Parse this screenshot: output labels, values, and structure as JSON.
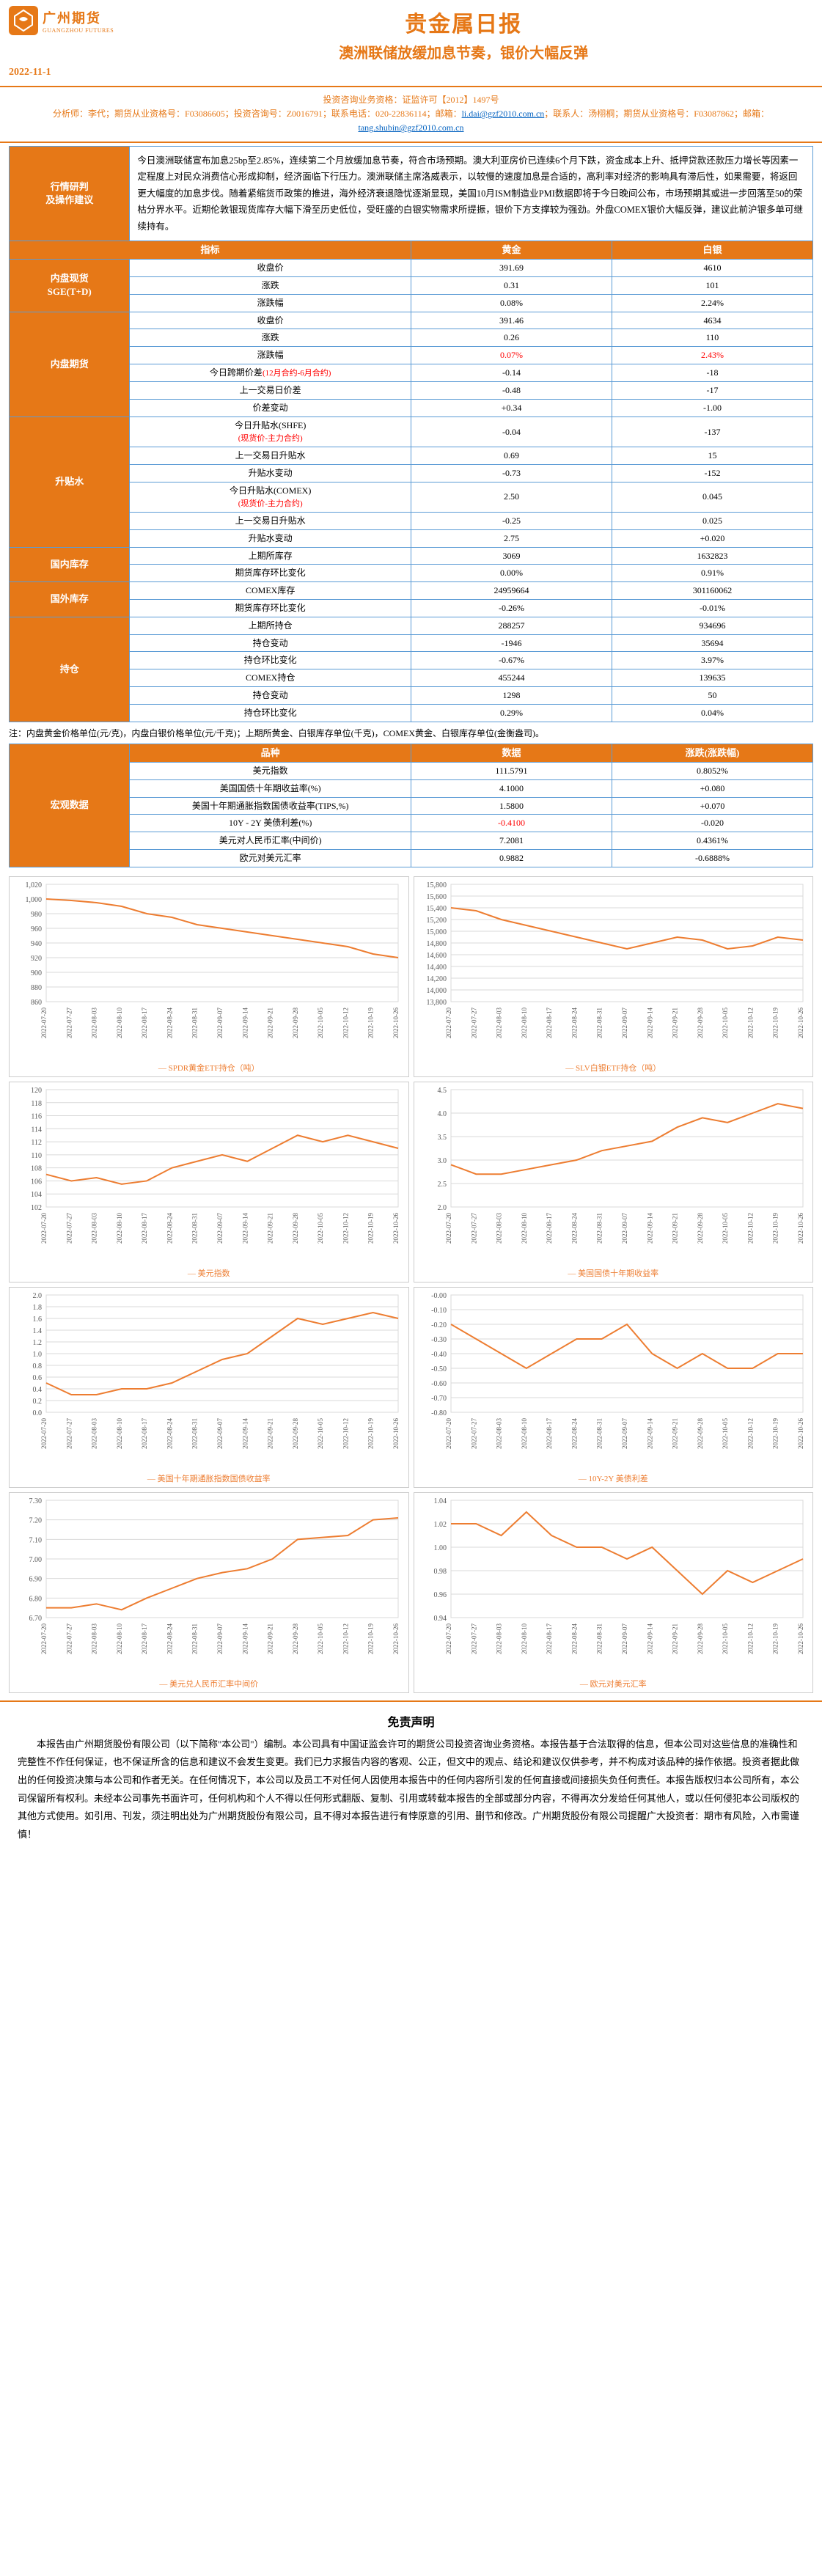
{
  "header": {
    "logo_ch": "广州期货",
    "logo_en": "GUANGZHOU FUTURES",
    "title": "贵金属日报",
    "subtitle": "澳洲联储放缓加息节奏，银价大幅反弹",
    "date": "2022-11-1",
    "license_line": "投资咨询业务资格：证监许可【2012】1497号",
    "analyst_line1": "分析师：李代；期货从业资格号：F03086605；投资咨询号：Z0016791；联系电话：020-22836114；邮箱：",
    "analyst_email1": "li.dai@gzf2010.com.cn",
    "analyst_line2": "；联系人：汤栩桐；期货从业资格号：F03087862；邮箱：",
    "analyst_email2": "tang.shubin@gzf2010.com.cn"
  },
  "analysis": {
    "section_label": "行情研判\n及操作建议",
    "text": "今日澳洲联储宣布加息25bp至2.85%，连续第二个月放缓加息节奏，符合市场预期。澳大利亚房价已连续6个月下跌，资金成本上升、抵押贷款还款压力增长等因素一定程度上对民众消费信心形成抑制，经济面临下行压力。澳洲联储主席洛威表示，以较慢的速度加息是合适的，高利率对经济的影响具有滞后性，如果需要，将返回更大幅度的加息步伐。随着紧缩货币政策的推进，海外经济衰退隐忧逐渐显现，美国10月ISM制造业PMI数据即将于今日晚间公布，市场预期其或进一步回落至50的荣枯分界水平。近期伦敦银现货库存大幅下滑至历史低位，受旺盛的白银实物需求所提振，银价下方支撑较为强劲。外盘COMEX银价大幅反弹，建议此前沪银多单可继续持有。"
  },
  "table_main": {
    "header": [
      "指标",
      "黄金",
      "白银"
    ],
    "groups": [
      {
        "label": "内盘现货\nSGE(T+D)",
        "rows": [
          {
            "k": "收盘价",
            "g": "391.69",
            "s": "4610"
          },
          {
            "k": "涨跌",
            "g": "0.31",
            "s": "101"
          },
          {
            "k": "涨跌幅",
            "g": "0.08%",
            "s": "2.24%"
          }
        ]
      },
      {
        "label": "内盘期货",
        "rows": [
          {
            "k": "收盘价",
            "g": "391.46",
            "s": "4634"
          },
          {
            "k": "涨跌",
            "g": "0.26",
            "s": "110"
          },
          {
            "k": "涨跌幅",
            "g": "0.07%",
            "s": "2.43%",
            "red": true
          },
          {
            "k": "今日跨期价差(12月合约-6月合约)",
            "k_red_part": "(12月合约-6月合约)",
            "g": "-0.14",
            "s": "-18"
          },
          {
            "k": "上一交易日价差",
            "g": "-0.48",
            "s": "-17"
          },
          {
            "k": "价差变动",
            "g": "+0.34",
            "s": "-1.00"
          }
        ]
      },
      {
        "label": "升贴水",
        "rows": [
          {
            "k": "今日升贴水(SHFE)\n(现货价-主力合约)",
            "k_red_line2": "(现货价-主力合约)",
            "g": "-0.04",
            "s": "-137"
          },
          {
            "k": "上一交易日升贴水",
            "g": "0.69",
            "s": "15"
          },
          {
            "k": "升贴水变动",
            "g": "-0.73",
            "s": "-152"
          },
          {
            "k": "今日升贴水(COMEX)\n(现货价-主力合约)",
            "k_red_line2": "(现货价-主力合约)",
            "g": "2.50",
            "s": "0.045"
          },
          {
            "k": "上一交易日升贴水",
            "g": "-0.25",
            "s": "0.025"
          },
          {
            "k": "升贴水变动",
            "g": "2.75",
            "s": "+0.020"
          }
        ]
      },
      {
        "label": "国内库存",
        "rows": [
          {
            "k": "上期所库存",
            "g": "3069",
            "s": "1632823"
          },
          {
            "k": "期货库存环比变化",
            "g": "0.00%",
            "s": "0.91%"
          }
        ]
      },
      {
        "label": "国外库存",
        "rows": [
          {
            "k": "COMEX库存",
            "g": "24959664",
            "s": "301160062"
          },
          {
            "k": "期货库存环比变化",
            "g": "-0.26%",
            "s": "-0.01%"
          }
        ]
      },
      {
        "label": "持仓",
        "rows": [
          {
            "k": "上期所持仓",
            "g": "288257",
            "s": "934696"
          },
          {
            "k": "持仓变动",
            "g": "-1946",
            "s": "35694"
          },
          {
            "k": "持仓环比变化",
            "g": "-0.67%",
            "s": "3.97%"
          },
          {
            "k": "COMEX持仓",
            "g": "455244",
            "s": "139635"
          },
          {
            "k": "持仓变动",
            "g": "1298",
            "s": "50"
          },
          {
            "k": "持仓环比变化",
            "g": "0.29%",
            "s": "0.04%"
          }
        ]
      }
    ]
  },
  "note_text": "注：内盘黄金价格单位(元/克)，内盘白银价格单位(元/千克)；上期所黄金、白银库存单位(千克)，COMEX黄金、白银库存单位(金衡盎司)。",
  "macro": {
    "label": "宏观数据",
    "header": [
      "品种",
      "数据",
      "涨跌(涨跌幅)"
    ],
    "rows": [
      {
        "k": "美元指数",
        "v": "111.5791",
        "c": "0.8052%"
      },
      {
        "k": "美国国债十年期收益率(%)",
        "v": "4.1000",
        "c": "+0.080"
      },
      {
        "k": "美国十年期通胀指数国债收益率(TIPS,%)",
        "v": "1.5800",
        "c": "+0.070"
      },
      {
        "k": "10Y - 2Y 美债利差(%)",
        "v": "-0.4100",
        "c": "-0.020",
        "red_v": true
      },
      {
        "k": "美元对人民币汇率(中间价)",
        "v": "7.2081",
        "c": "0.4361%"
      },
      {
        "k": "欧元对美元汇率",
        "v": "0.9882",
        "c": "-0.6888%"
      }
    ]
  },
  "charts": {
    "color": "#ed7d31",
    "grid": "#d9d9d9",
    "text": "#595959",
    "dates": [
      "2022-07-20",
      "2022-07-27",
      "2022-08-03",
      "2022-08-10",
      "2022-08-17",
      "2022-08-24",
      "2022-08-31",
      "2022-09-07",
      "2022-09-14",
      "2022-09-21",
      "2022-09-28",
      "2022-10-05",
      "2022-10-12",
      "2022-10-19",
      "2022-10-26"
    ],
    "items": [
      {
        "title": "SPDR黄金ETF持仓（吨）",
        "ymin": 860,
        "ymax": 1020,
        "ystep": 20,
        "data": [
          1000,
          998,
          995,
          990,
          980,
          975,
          965,
          960,
          955,
          950,
          945,
          940,
          935,
          925,
          920
        ]
      },
      {
        "title": "SLV白银ETF持仓（吨）",
        "ymin": 13800,
        "ymax": 15800,
        "ystep": 200,
        "data": [
          15400,
          15350,
          15200,
          15100,
          15000,
          14900,
          14800,
          14700,
          14800,
          14900,
          14850,
          14700,
          14750,
          14900,
          14850
        ]
      },
      {
        "title": "美元指数",
        "ymin": 102,
        "ymax": 120,
        "ystep": 2,
        "data": [
          107,
          106,
          106.5,
          105.5,
          106,
          108,
          109,
          110,
          109,
          111,
          113,
          112,
          113,
          112,
          111
        ]
      },
      {
        "title": "美国国债十年期收益率",
        "ymin": 2.0,
        "ymax": 4.5,
        "ystep": 0.5,
        "data": [
          2.9,
          2.7,
          2.7,
          2.8,
          2.9,
          3.0,
          3.2,
          3.3,
          3.4,
          3.7,
          3.9,
          3.8,
          4.0,
          4.2,
          4.1
        ]
      },
      {
        "title": "美国十年期通胀指数国债收益率",
        "ymin": 0.0,
        "ymax": 2.0,
        "ystep": 0.2,
        "data": [
          0.5,
          0.3,
          0.3,
          0.4,
          0.4,
          0.5,
          0.7,
          0.9,
          1.0,
          1.3,
          1.6,
          1.5,
          1.6,
          1.7,
          1.6
        ]
      },
      {
        "title": "10Y-2Y 美债利差",
        "ymin": -0.8,
        "ymax": 0.0,
        "ystep": 0.1,
        "data": [
          -0.2,
          -0.3,
          -0.4,
          -0.5,
          -0.4,
          -0.3,
          -0.3,
          -0.2,
          -0.4,
          -0.5,
          -0.4,
          -0.5,
          -0.5,
          -0.4,
          -0.4
        ]
      },
      {
        "title": "美元兑人民币汇率中间价",
        "ymin": 6.7,
        "ymax": 7.3,
        "ystep": 0.1,
        "data": [
          6.75,
          6.75,
          6.77,
          6.74,
          6.8,
          6.85,
          6.9,
          6.93,
          6.95,
          7.0,
          7.1,
          7.11,
          7.12,
          7.2,
          7.21
        ]
      },
      {
        "title": "欧元对美元汇率",
        "ymin": 0.94,
        "ymax": 1.04,
        "ystep": 0.02,
        "data": [
          1.02,
          1.02,
          1.01,
          1.03,
          1.01,
          1.0,
          1.0,
          0.99,
          1.0,
          0.98,
          0.96,
          0.98,
          0.97,
          0.98,
          0.99
        ]
      }
    ]
  },
  "disclaimer": {
    "title": "免责声明",
    "body": "本报告由广州期货股份有限公司（以下简称\"本公司\"）编制。本公司具有中国证监会许可的期货公司投资咨询业务资格。本报告基于合法取得的信息，但本公司对这些信息的准确性和完整性不作任何保证，也不保证所含的信息和建议不会发生变更。我们已力求报告内容的客观、公正，但文中的观点、结论和建议仅供参考，并不构成对该品种的操作依据。投资者据此做出的任何投资决策与本公司和作者无关。在任何情况下，本公司以及员工不对任何人因使用本报告中的任何内容所引发的任何直接或间接损失负任何责任。本报告版权归本公司所有，本公司保留所有权利。未经本公司事先书面许可，任何机构和个人不得以任何形式翻版、复制、引用或转载本报告的全部或部分内容，不得再次分发给任何其他人，或以任何侵犯本公司版权的其他方式使用。如引用、刊发，须注明出处为广州期货股份有限公司，且不得对本报告进行有悖原意的引用、删节和修改。广州期货股份有限公司提醒广大投资者：期市有风险，入市需谨慎！"
  }
}
